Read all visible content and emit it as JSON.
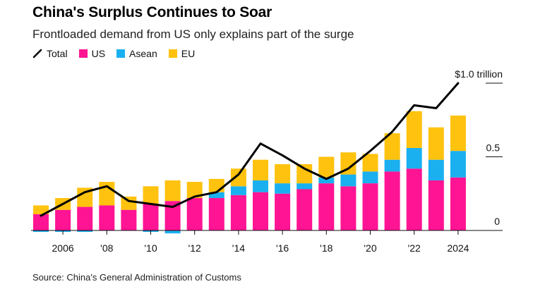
{
  "header": {
    "title": "China's Surplus Continues to Soar",
    "subtitle": "Frontloaded demand from US only explains part of the surge"
  },
  "legend": [
    {
      "label": "Total",
      "kind": "line",
      "color": "#000000"
    },
    {
      "label": "US",
      "kind": "bar",
      "color": "#ff1493"
    },
    {
      "label": "Asean",
      "kind": "bar",
      "color": "#1ab0f0"
    },
    {
      "label": "EU",
      "kind": "bar",
      "color": "#ffc20e"
    }
  ],
  "footer": {
    "source": "Source: China's General Administration of Customs"
  },
  "chart_data": {
    "type": "bar",
    "stacked": true,
    "ylabel": "",
    "ylim": [
      -0.02,
      1.02
    ],
    "yticks": [
      {
        "value": 0,
        "label": "0"
      },
      {
        "value": 0.5,
        "label": "0.5"
      },
      {
        "value": 1.0,
        "label": "$1.0 trillion"
      }
    ],
    "xticks": [
      {
        "year": 2006,
        "label": "2006"
      },
      {
        "year": 2008,
        "label": "'08"
      },
      {
        "year": 2010,
        "label": "'10"
      },
      {
        "year": 2012,
        "label": "'12"
      },
      {
        "year": 2014,
        "label": "'14"
      },
      {
        "year": 2016,
        "label": "'16"
      },
      {
        "year": 2018,
        "label": "'18"
      },
      {
        "year": 2020,
        "label": "'20"
      },
      {
        "year": 2022,
        "label": "'22"
      },
      {
        "year": 2024,
        "label": "2024"
      }
    ],
    "categories": [
      2005,
      2006,
      2007,
      2008,
      2009,
      2010,
      2011,
      2012,
      2013,
      2014,
      2015,
      2016,
      2017,
      2018,
      2019,
      2020,
      2021,
      2022,
      2023,
      2024
    ],
    "series": [
      {
        "name": "US",
        "color": "#ff1493",
        "values": [
          0.11,
          0.14,
          0.16,
          0.17,
          0.14,
          0.18,
          0.2,
          0.22,
          0.22,
          0.24,
          0.26,
          0.25,
          0.28,
          0.32,
          0.3,
          0.32,
          0.4,
          0.42,
          0.34,
          0.36
        ]
      },
      {
        "name": "Asean",
        "color": "#1ab0f0",
        "values": [
          -0.01,
          -0.01,
          -0.01,
          0.0,
          0.0,
          -0.01,
          -0.02,
          0.0,
          0.04,
          0.06,
          0.08,
          0.07,
          0.04,
          0.04,
          0.08,
          0.08,
          0.08,
          0.14,
          0.14,
          0.18
        ]
      },
      {
        "name": "EU",
        "color": "#ffc20e",
        "values": [
          0.06,
          0.08,
          0.13,
          0.16,
          0.09,
          0.12,
          0.14,
          0.11,
          0.09,
          0.12,
          0.14,
          0.13,
          0.13,
          0.14,
          0.15,
          0.12,
          0.18,
          0.25,
          0.22,
          0.24
        ]
      }
    ],
    "line": {
      "name": "Total",
      "color": "#000000",
      "values": [
        0.1,
        0.18,
        0.26,
        0.3,
        0.2,
        0.18,
        0.16,
        0.23,
        0.26,
        0.38,
        0.59,
        0.51,
        0.42,
        0.35,
        0.42,
        0.54,
        0.67,
        0.85,
        0.83,
        1.0
      ]
    },
    "grid": false,
    "legend_position": "top-left"
  }
}
